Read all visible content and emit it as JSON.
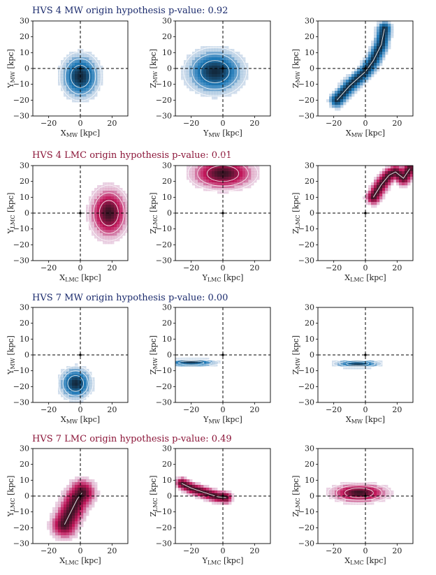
{
  "colors": {
    "mw": "#1f7ab8",
    "lmc": "#c2185b",
    "mw_title": "#1a2a6c",
    "lmc_title": "#8b1538"
  },
  "rows": [
    {
      "title": "HVS 4 MW origin hypothesis p-value: 0.92",
      "frame": "MW"
    },
    {
      "title": "HVS 4 LMC origin hypothesis p-value: 0.01",
      "frame": "LMC"
    },
    {
      "title": "HVS 7 MW origin hypothesis p-value: 0.00",
      "frame": "MW"
    },
    {
      "title": "HVS 7 LMC origin hypothesis p-value: 0.49",
      "frame": "LMC"
    }
  ],
  "chart_data": [
    {
      "type": "heatmap",
      "row": 0,
      "col": 0,
      "frame": "MW",
      "xlabel": "X",
      "ylabel": "Y",
      "unit": "[kpc]",
      "xlim": [
        -30,
        30
      ],
      "ylim": [
        -30,
        30
      ],
      "xticks": [
        -20,
        0,
        20
      ],
      "yticks": [
        -30,
        -20,
        -10,
        0,
        10,
        20,
        30
      ],
      "density": {
        "shape": "blob",
        "center": [
          0,
          -5
        ],
        "spread": [
          6,
          7
        ]
      }
    },
    {
      "type": "heatmap",
      "row": 0,
      "col": 1,
      "frame": "MW",
      "xlabel": "Y",
      "ylabel": "Z",
      "unit": "[kpc]",
      "xlim": [
        -30,
        30
      ],
      "ylim": [
        -30,
        30
      ],
      "xticks": [
        -20,
        0,
        20
      ],
      "yticks": [
        -30,
        -20,
        -10,
        0,
        10,
        20,
        30
      ],
      "density": {
        "shape": "blob",
        "center": [
          -5,
          -2
        ],
        "spread": [
          9,
          7
        ]
      }
    },
    {
      "type": "heatmap",
      "row": 0,
      "col": 2,
      "frame": "MW",
      "xlabel": "X",
      "ylabel": "Z",
      "unit": "[kpc]",
      "xlim": [
        -30,
        30
      ],
      "ylim": [
        -30,
        30
      ],
      "xticks": [
        -20,
        0,
        20
      ],
      "yticks": [
        -30,
        -20,
        -10,
        0,
        10,
        20,
        30
      ],
      "density": {
        "shape": "curve",
        "points": [
          [
            -18,
            -20
          ],
          [
            -10,
            -11
          ],
          [
            0,
            -2
          ],
          [
            5,
            5
          ],
          [
            10,
            15
          ],
          [
            12,
            25
          ]
        ],
        "spread": 2.5
      }
    },
    {
      "type": "heatmap",
      "row": 1,
      "col": 0,
      "frame": "LMC",
      "xlabel": "X",
      "ylabel": "Y",
      "unit": "[kpc]",
      "xlim": [
        -30,
        30
      ],
      "ylim": [
        -30,
        30
      ],
      "xticks": [
        -20,
        0,
        20
      ],
      "yticks": [
        -30,
        -20,
        -10,
        0,
        10,
        20,
        30
      ],
      "density": {
        "shape": "blob",
        "center": [
          18,
          0
        ],
        "spread": [
          6,
          8
        ]
      }
    },
    {
      "type": "heatmap",
      "row": 1,
      "col": 1,
      "frame": "LMC",
      "xlabel": "Y",
      "ylabel": "Z",
      "unit": "[kpc]",
      "xlim": [
        -30,
        30
      ],
      "ylim": [
        -30,
        30
      ],
      "xticks": [
        -20,
        0,
        20
      ],
      "yticks": [
        -30,
        -20,
        -10,
        0,
        10,
        20,
        30
      ],
      "density": {
        "shape": "blob",
        "center": [
          0,
          25
        ],
        "spread": [
          10,
          5
        ]
      }
    },
    {
      "type": "heatmap",
      "row": 1,
      "col": 2,
      "frame": "LMC",
      "xlabel": "X",
      "ylabel": "Z",
      "unit": "[kpc]",
      "xlim": [
        -30,
        30
      ],
      "ylim": [
        -30,
        30
      ],
      "xticks": [
        -20,
        0,
        20
      ],
      "yticks": [
        -30,
        -20,
        -10,
        0,
        10,
        20,
        30
      ],
      "density": {
        "shape": "curve",
        "points": [
          [
            5,
            10
          ],
          [
            10,
            18
          ],
          [
            15,
            24
          ],
          [
            19,
            26
          ],
          [
            24,
            22
          ],
          [
            28,
            28
          ]
        ],
        "spread": 2.5
      }
    },
    {
      "type": "heatmap",
      "row": 2,
      "col": 0,
      "frame": "MW",
      "xlabel": "X",
      "ylabel": "Y",
      "unit": "[kpc]",
      "xlim": [
        -30,
        30
      ],
      "ylim": [
        -30,
        30
      ],
      "xticks": [
        -20,
        0,
        20
      ],
      "yticks": [
        -30,
        -20,
        -10,
        0,
        10,
        20,
        30
      ],
      "density": {
        "shape": "blob",
        "center": [
          -3,
          -18
        ],
        "spread": [
          5,
          5
        ]
      }
    },
    {
      "type": "heatmap",
      "row": 2,
      "col": 1,
      "frame": "MW",
      "xlabel": "Y",
      "ylabel": "Z",
      "unit": "[kpc]",
      "xlim": [
        -30,
        30
      ],
      "ylim": [
        -30,
        30
      ],
      "xticks": [
        -20,
        0,
        20
      ],
      "yticks": [
        -30,
        -20,
        -10,
        0,
        10,
        20,
        30
      ],
      "density": {
        "shape": "blob",
        "center": [
          -20,
          -5
        ],
        "spread": [
          8,
          1.2
        ]
      }
    },
    {
      "type": "heatmap",
      "row": 2,
      "col": 2,
      "frame": "MW",
      "xlabel": "X",
      "ylabel": "Z",
      "unit": "[kpc]",
      "xlim": [
        -30,
        30
      ],
      "ylim": [
        -30,
        30
      ],
      "xticks": [
        -20,
        0,
        20
      ],
      "yticks": [
        -30,
        -20,
        -10,
        0,
        10,
        20,
        30
      ],
      "density": {
        "shape": "blob",
        "center": [
          -5,
          -5.5
        ],
        "spread": [
          7,
          1.2
        ]
      }
    },
    {
      "type": "heatmap",
      "row": 3,
      "col": 0,
      "frame": "LMC",
      "xlabel": "X",
      "ylabel": "Y",
      "unit": "[kpc]",
      "xlim": [
        -30,
        30
      ],
      "ylim": [
        -30,
        30
      ],
      "xticks": [
        -20,
        0,
        20
      ],
      "yticks": [
        -30,
        -20,
        -10,
        0,
        10,
        20,
        30
      ],
      "density": {
        "shape": "curve",
        "points": [
          [
            -10,
            -18
          ],
          [
            -7,
            -12
          ],
          [
            -4,
            -6
          ],
          [
            -2,
            -2
          ],
          [
            1,
            2
          ]
        ],
        "spread": 4.5
      }
    },
    {
      "type": "heatmap",
      "row": 3,
      "col": 1,
      "frame": "LMC",
      "xlabel": "Y",
      "ylabel": "Z",
      "unit": "[kpc]",
      "xlim": [
        -30,
        30
      ],
      "ylim": [
        -30,
        30
      ],
      "xticks": [
        -20,
        0,
        20
      ],
      "yticks": [
        -30,
        -20,
        -10,
        0,
        10,
        20,
        30
      ],
      "density": {
        "shape": "curve",
        "points": [
          [
            -26,
            8
          ],
          [
            -20,
            5
          ],
          [
            -14,
            3
          ],
          [
            -8,
            1
          ],
          [
            -3,
            -0.5
          ],
          [
            2,
            -1
          ]
        ],
        "spread": 2
      }
    },
    {
      "type": "heatmap",
      "row": 3,
      "col": 2,
      "frame": "LMC",
      "xlabel": "X",
      "ylabel": "Z",
      "unit": "[kpc]",
      "xlim": [
        -30,
        30
      ],
      "ylim": [
        -30,
        30
      ],
      "xticks": [
        -20,
        0,
        20
      ],
      "yticks": [
        -30,
        -20,
        -10,
        0,
        10,
        20,
        30
      ],
      "density": {
        "shape": "blob",
        "center": [
          -4,
          2
        ],
        "spread": [
          9,
          3
        ]
      }
    }
  ]
}
